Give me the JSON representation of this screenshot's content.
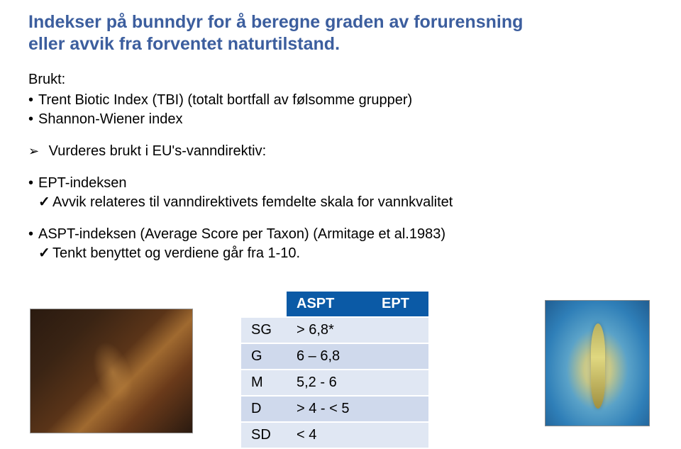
{
  "title_line1": "Indekser på bunndyr for å beregne graden av forurensning",
  "title_line2": "eller avvik fra forventet naturtilstand.",
  "brukt_label": "Brukt:",
  "brukt_items": [
    "Trent Biotic Index (TBI) (totalt bortfall av følsomme grupper)",
    "Shannon-Wiener index"
  ],
  "vurderes_line": "Vurderes brukt i EU's-vanndirektiv:",
  "ept_label": "EPT-indeksen",
  "ept_sub": "Avvik relateres til vanndirektivets femdelte skala for vannkvalitet",
  "aspt_label": "ASPT-indeksen (Average Score per Taxon) (Armitage et al.1983)",
  "aspt_sub": "Tenkt benyttet og verdiene går fra 1-10.",
  "table": {
    "type": "table",
    "header_bg": "#0b5aa6",
    "header_fg": "#ffffff",
    "row_bg_odd": "#e0e7f3",
    "row_bg_even": "#cfd9ec",
    "columns": [
      "",
      "ASPT",
      "EPT"
    ],
    "rows": [
      [
        "SG",
        "> 6,8*",
        ""
      ],
      [
        "G",
        "6 – 6,8",
        ""
      ],
      [
        "M",
        "5,2 - 6",
        ""
      ],
      [
        "D",
        "> 4 - < 5",
        ""
      ],
      [
        "SD",
        "< 4",
        ""
      ]
    ]
  }
}
